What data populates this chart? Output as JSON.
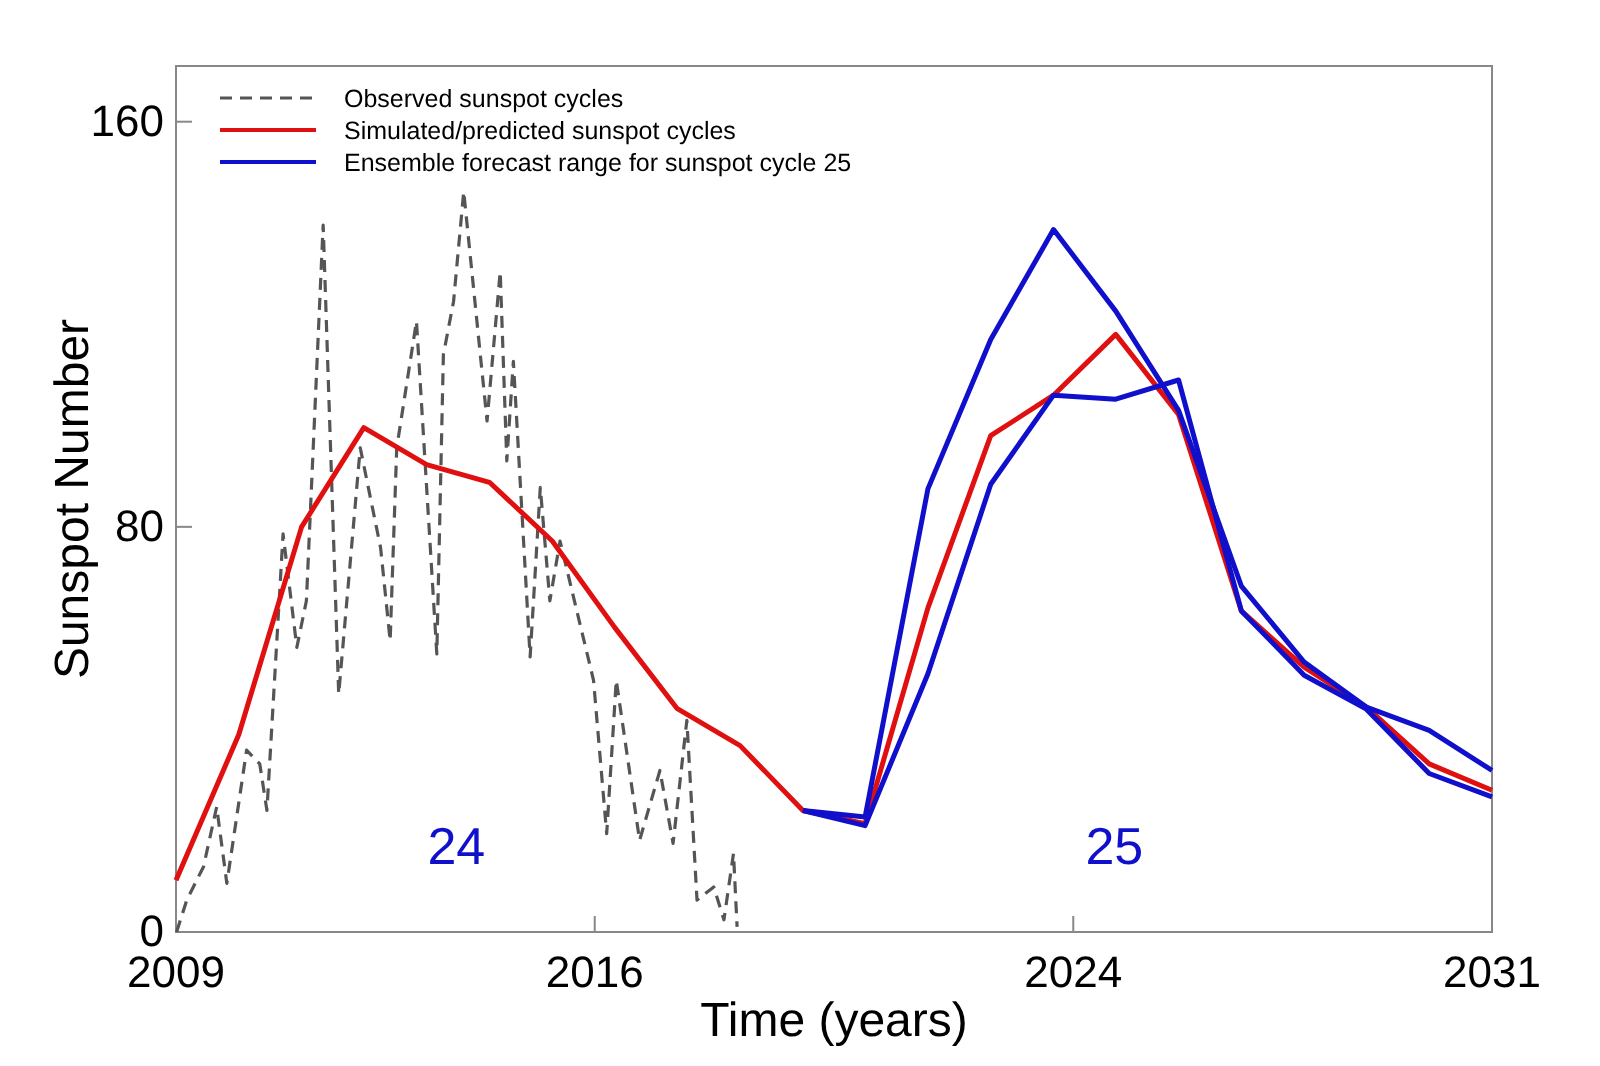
{
  "chart_data": {
    "type": "line",
    "xlabel": "Time (years)",
    "ylabel": "Sunspot Number",
    "xlim": [
      2009,
      2031
    ],
    "xticks": [
      2009,
      2016,
      2024,
      2031
    ],
    "ylim": [
      0,
      171
    ],
    "yticks": [
      0,
      80,
      160
    ],
    "grid": false,
    "legend": "top left",
    "series": [
      {
        "name": "Observed sunspot cycles",
        "color": "#555555",
        "line_style": "dashed",
        "x": [
          2009.01,
          2009.18,
          2009.46,
          2009.68,
          2009.85,
          2010.18,
          2010.4,
          2010.52,
          2010.79,
          2011.02,
          2011.18,
          2011.46,
          2011.72,
          2012.08,
          2012.42,
          2012.58,
          2012.69,
          2013.02,
          2013.36,
          2013.47,
          2013.64,
          2013.81,
          2014.2,
          2014.42,
          2014.53,
          2014.64,
          2014.92,
          2015.09,
          2015.25,
          2015.42,
          2015.98,
          2016.2,
          2016.36,
          2016.75,
          2017.09,
          2017.31,
          2017.54,
          2017.71,
          2017.99,
          2018.16,
          2018.32,
          2018.38
        ],
        "values": [
          0,
          6.3,
          12.9,
          24.7,
          9.6,
          35.9,
          33.2,
          24,
          78.6,
          56.2,
          65.4,
          139.6,
          47,
          95.6,
          75.9,
          57.5,
          95.6,
          120.6,
          54.9,
          114,
          124.5,
          146.2,
          100.9,
          130.4,
          93,
          112.7,
          54.3,
          87.8,
          65.4,
          77.2,
          49.7,
          19.4,
          49.7,
          18.1,
          31.9,
          17.5,
          41.8,
          6.3,
          8.9,
          2.4,
          15.5,
          1
        ]
      },
      {
        "name": "Simulated/predicted sunspot cycles",
        "color": "#e01010",
        "line_style": "solid",
        "x": [
          2009,
          2010.05,
          2011.1,
          2012.14,
          2013.19,
          2014.24,
          2015.29,
          2016.33,
          2017.38,
          2018.43,
          2019.48,
          2020.52,
          2021.57,
          2022.62,
          2023.67,
          2024.71,
          2025.76,
          2026.81,
          2027.86,
          2028.9,
          2029.95,
          2031
        ],
        "values": [
          10.2,
          39,
          80,
          99.6,
          92.3,
          88.8,
          77.2,
          60.2,
          44.1,
          36.8,
          24,
          21.4,
          64,
          98,
          106,
          118,
          102.2,
          63.4,
          52.3,
          44.4,
          33.2,
          28
        ]
      },
      {
        "name": "Ensemble forecast range for sunspot cycle 25",
        "color": "#1010cc",
        "line_style": "solid",
        "x": [
          2019.48,
          2020.52,
          2021.57,
          2022.62,
          2023.67,
          2024.71,
          2025.76,
          2026.81,
          2027.86,
          2028.9,
          2029.95,
          2031
        ],
        "values": [
          24,
          22.7,
          87.5,
          117,
          138.7,
          122.6,
          103,
          68.3,
          53.3,
          44.4,
          39.8,
          31.9
        ]
      },
      {
        "color": "#1010cc",
        "line_style": "solid",
        "x": [
          2019.48,
          2020.52,
          2021.57,
          2022.62,
          2023.67,
          2024.71,
          2025.76,
          2026.81,
          2027.86,
          2028.9,
          2029.95,
          2031
        ],
        "values": [
          24,
          21,
          51,
          88.4,
          106,
          105.2,
          109,
          63.4,
          50.7,
          44,
          31.3,
          26.7
        ]
      }
    ],
    "annotations": [
      "24",
      "25"
    ]
  }
}
